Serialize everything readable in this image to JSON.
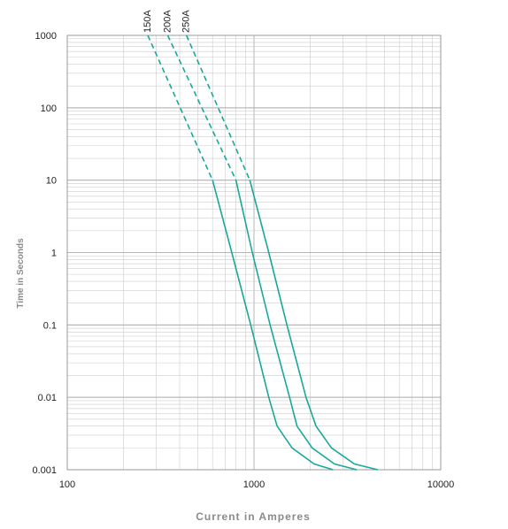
{
  "chart_data": {
    "type": "line",
    "title": "",
    "xlabel": "Current in Amperes",
    "ylabel": "Time in Seconds",
    "x_scale": "log",
    "y_scale": "log",
    "xlim": [
      100,
      10000
    ],
    "ylim": [
      0.001,
      1000
    ],
    "x_ticks": [
      "100",
      "1000",
      "10000"
    ],
    "y_ticks": [
      "1000",
      "100",
      "10",
      "1",
      "0.1",
      "0.01",
      "0.001"
    ],
    "grid": true,
    "line_color": "#17a89a",
    "grid_color": "#cccccc",
    "series": [
      {
        "name": "150A",
        "dashed_points": [
          [
            270,
            1000
          ],
          [
            600,
            10
          ]
        ],
        "points": [
          [
            600,
            10
          ],
          [
            760,
            1
          ],
          [
            960,
            0.1
          ],
          [
            1200,
            0.01
          ],
          [
            1330,
            0.004
          ],
          [
            1600,
            0.002
          ],
          [
            2100,
            0.0012
          ],
          [
            2650,
            0.001
          ]
        ]
      },
      {
        "name": "200A",
        "dashed_points": [
          [
            345,
            1000
          ],
          [
            800,
            10
          ]
        ],
        "points": [
          [
            800,
            10
          ],
          [
            980,
            1
          ],
          [
            1220,
            0.1
          ],
          [
            1550,
            0.01
          ],
          [
            1700,
            0.004
          ],
          [
            2050,
            0.002
          ],
          [
            2700,
            0.0012
          ],
          [
            3550,
            0.001
          ]
        ]
      },
      {
        "name": "250A",
        "dashed_points": [
          [
            435,
            1000
          ],
          [
            950,
            10
          ]
        ],
        "points": [
          [
            950,
            10
          ],
          [
            1200,
            1
          ],
          [
            1500,
            0.1
          ],
          [
            1900,
            0.01
          ],
          [
            2150,
            0.004
          ],
          [
            2600,
            0.002
          ],
          [
            3450,
            0.0012
          ],
          [
            4600,
            0.001
          ]
        ]
      }
    ]
  }
}
